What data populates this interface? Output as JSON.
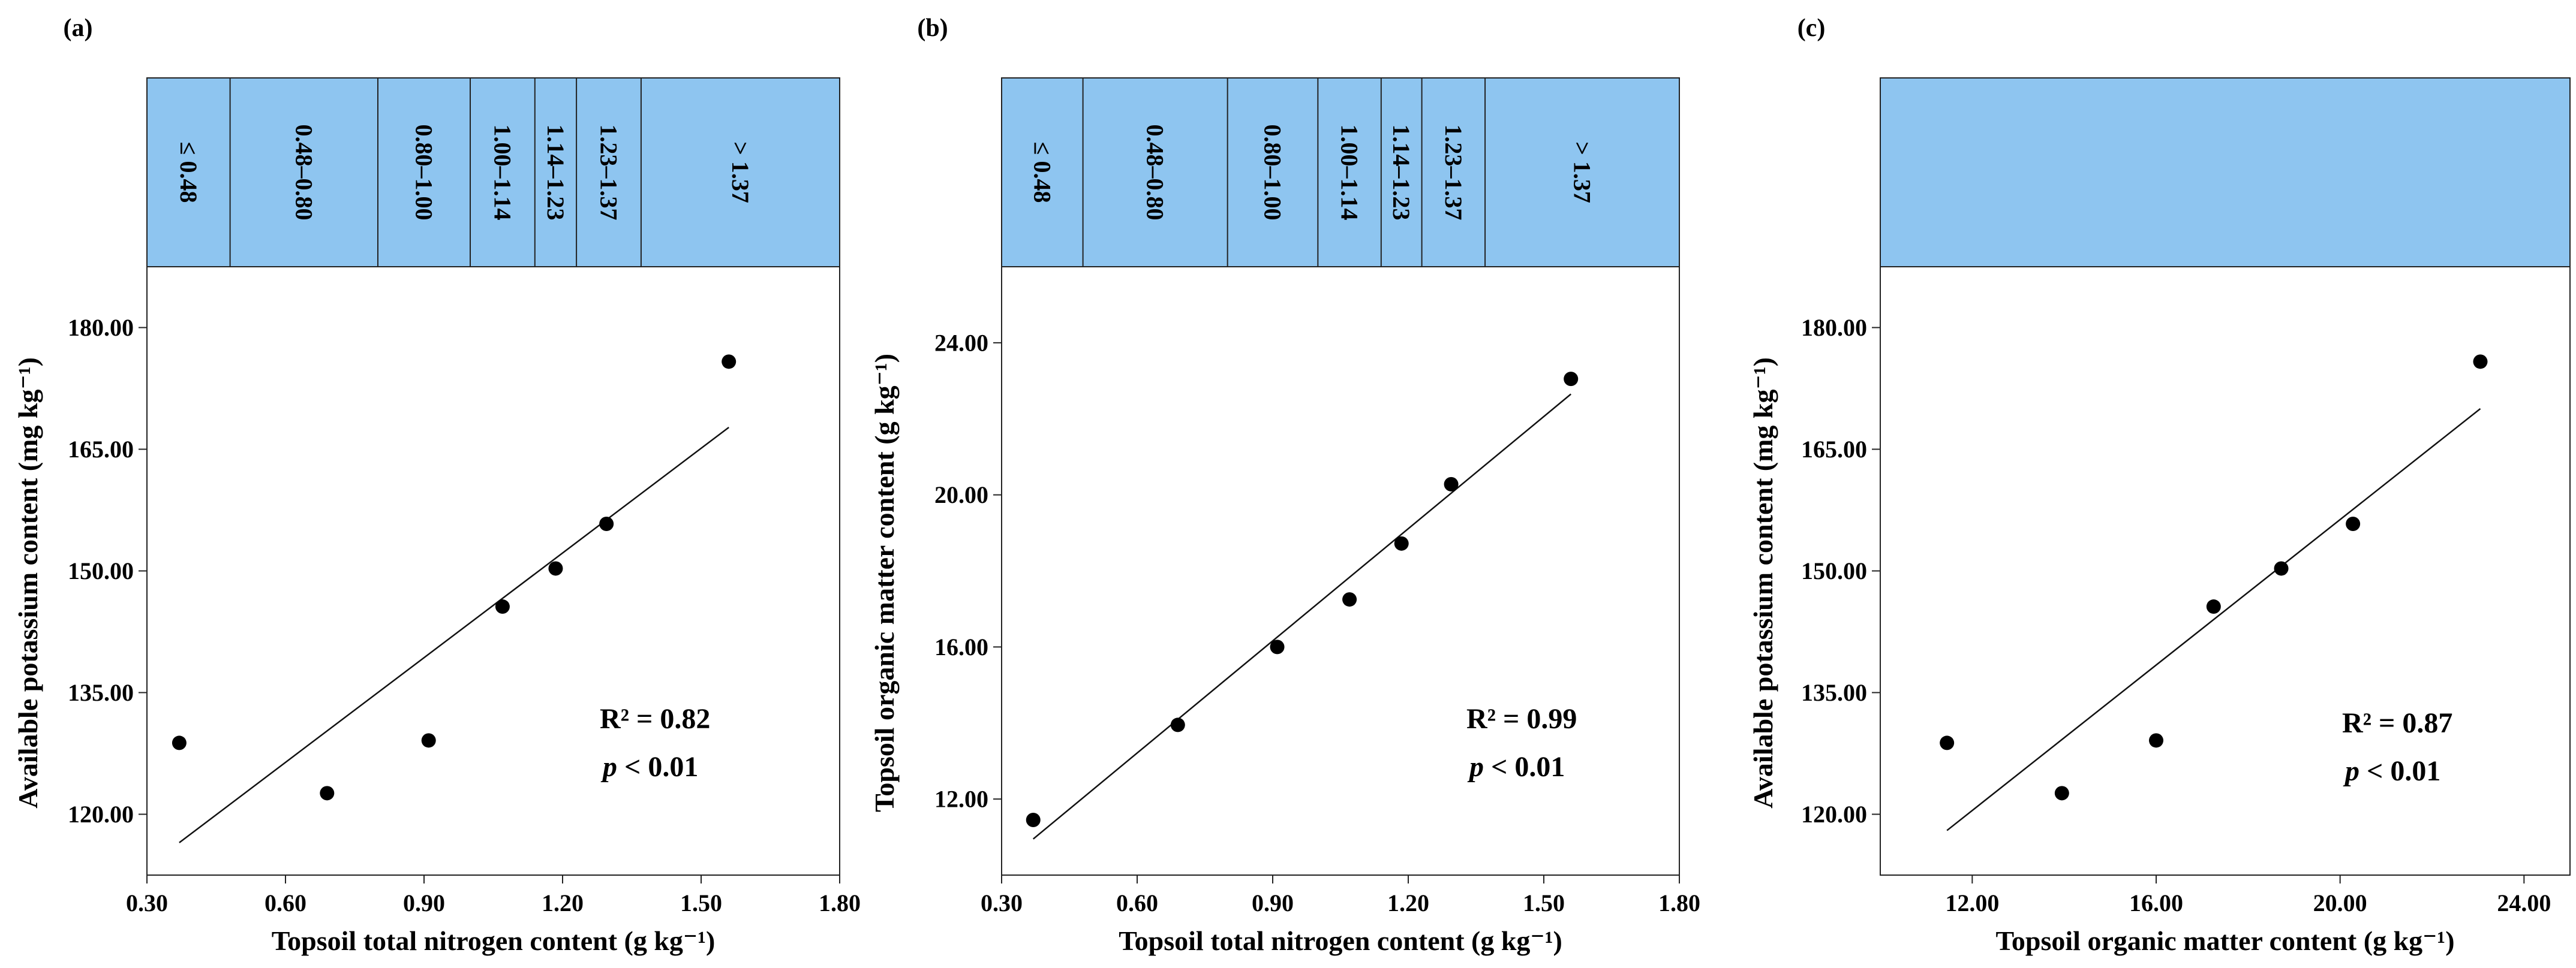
{
  "band_color": "#8ec5f0",
  "chart_data": [
    {
      "type": "scatter",
      "panel_label": "(a)",
      "xlabel": "Topsoil total nitrogen content (g kg⁻¹)",
      "ylabel": "Available potassium content (mg kg⁻¹)",
      "xlim": [
        0.3,
        1.8
      ],
      "ylim": [
        112.5,
        187.5
      ],
      "xticks": [
        0.3,
        0.6,
        0.9,
        1.2,
        1.5,
        1.8
      ],
      "xtick_labels": [
        "0.30",
        "0.60",
        "0.90",
        "1.20",
        "1.50",
        "1.80"
      ],
      "yticks": [
        120,
        135,
        150,
        165,
        180
      ],
      "ytick_labels": [
        "120.00",
        "135.00",
        "150.00",
        "165.00",
        "180.00"
      ],
      "points": [
        {
          "x": 0.37,
          "y": 128.8
        },
        {
          "x": 0.69,
          "y": 122.6
        },
        {
          "x": 0.91,
          "y": 129.1
        },
        {
          "x": 1.07,
          "y": 145.6
        },
        {
          "x": 1.185,
          "y": 150.3
        },
        {
          "x": 1.295,
          "y": 155.8
        },
        {
          "x": 1.56,
          "y": 175.8
        }
      ],
      "fit_line": [
        {
          "x": 0.37,
          "y": 116.5
        },
        {
          "x": 1.56,
          "y": 167.7
        }
      ],
      "r2_text": "R² = 0.82",
      "p_text": "p < 0.01",
      "bands": [
        {
          "label": "≤ 0.48",
          "from": 0.3,
          "to": 0.48
        },
        {
          "label": "0.48–0.80",
          "from": 0.48,
          "to": 0.8
        },
        {
          "label": "0.80–1.00",
          "from": 0.8,
          "to": 1.0
        },
        {
          "label": "1.00–1.14",
          "from": 1.0,
          "to": 1.14
        },
        {
          "label": "1.14–1.23",
          "from": 1.14,
          "to": 1.23
        },
        {
          "label": "1.23–1.37",
          "from": 1.23,
          "to": 1.37
        },
        {
          "label": "> 1.37",
          "from": 1.37,
          "to": 1.8
        }
      ]
    },
    {
      "type": "scatter",
      "panel_label": "(b)",
      "xlabel": "Topsoil total nitrogen content (g kg⁻¹)",
      "ylabel": "Topsoil organic matter content (g kg⁻¹)",
      "xlim": [
        0.3,
        1.8
      ],
      "ylim": [
        10.0,
        26.0
      ],
      "xticks": [
        0.3,
        0.6,
        0.9,
        1.2,
        1.5,
        1.8
      ],
      "xtick_labels": [
        "0.30",
        "0.60",
        "0.90",
        "1.20",
        "1.50",
        "1.80"
      ],
      "yticks": [
        12,
        16,
        20,
        24
      ],
      "ytick_labels": [
        "12.00",
        "16.00",
        "20.00",
        "24.00"
      ],
      "points": [
        {
          "x": 0.37,
          "y": 11.45
        },
        {
          "x": 0.69,
          "y": 13.95
        },
        {
          "x": 0.91,
          "y": 16.0
        },
        {
          "x": 1.07,
          "y": 17.25
        },
        {
          "x": 1.185,
          "y": 18.72
        },
        {
          "x": 1.295,
          "y": 20.28
        },
        {
          "x": 1.56,
          "y": 23.05
        }
      ],
      "fit_line": [
        {
          "x": 0.37,
          "y": 10.95
        },
        {
          "x": 1.56,
          "y": 22.65
        }
      ],
      "r2_text": "R² = 0.99",
      "p_text": "p < 0.01",
      "bands": [
        {
          "label": "≤ 0.48",
          "from": 0.3,
          "to": 0.48
        },
        {
          "label": "0.48–0.80",
          "from": 0.48,
          "to": 0.8
        },
        {
          "label": "0.80–1.00",
          "from": 0.8,
          "to": 1.0
        },
        {
          "label": "1.00–1.14",
          "from": 1.0,
          "to": 1.14
        },
        {
          "label": "1.14–1.23",
          "from": 1.14,
          "to": 1.23
        },
        {
          "label": "1.23–1.37",
          "from": 1.23,
          "to": 1.37
        },
        {
          "label": "> 1.37",
          "from": 1.37,
          "to": 1.8
        }
      ]
    },
    {
      "type": "scatter",
      "panel_label": "(c)",
      "xlabel": "Topsoil organic matter content (g kg⁻¹)",
      "ylabel": "Available potassium content (mg kg⁻¹)",
      "xlim": [
        10.0,
        25.0
      ],
      "ylim": [
        112.5,
        187.5
      ],
      "xticks": [
        12,
        16,
        20,
        24
      ],
      "xtick_labels": [
        "12.00",
        "16.00",
        "20.00",
        "24.00"
      ],
      "yticks": [
        120,
        135,
        150,
        165,
        180
      ],
      "ytick_labels": [
        "120.00",
        "135.00",
        "150.00",
        "165.00",
        "180.00"
      ],
      "points": [
        {
          "x": 11.45,
          "y": 128.8
        },
        {
          "x": 13.95,
          "y": 122.6
        },
        {
          "x": 16.0,
          "y": 129.1
        },
        {
          "x": 17.25,
          "y": 145.6
        },
        {
          "x": 18.72,
          "y": 150.3
        },
        {
          "x": 20.28,
          "y": 155.8
        },
        {
          "x": 23.05,
          "y": 175.8
        }
      ],
      "fit_line": [
        {
          "x": 11.45,
          "y": 118.0
        },
        {
          "x": 23.05,
          "y": 170.0
        }
      ],
      "r2_text": "R² = 0.87",
      "p_text": "p < 0.01",
      "bands": []
    }
  ]
}
